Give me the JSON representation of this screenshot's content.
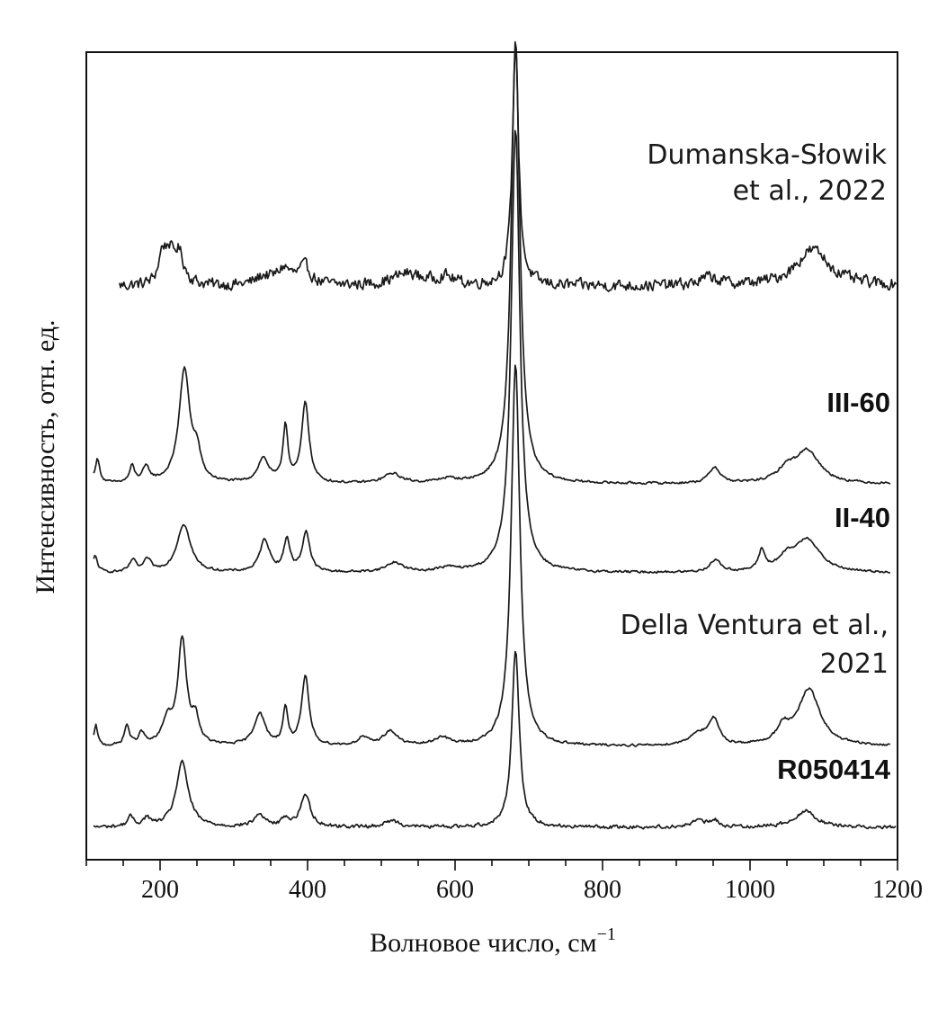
{
  "chart_data": {
    "type": "line",
    "title": "",
    "xlabel": "Волновое число, см",
    "xlabel_sup": "−1",
    "ylabel": "Интенсивность, отн. ед.",
    "xlim": [
      100,
      1200
    ],
    "xticks": [
      200,
      400,
      600,
      800,
      1000,
      1200
    ],
    "yticks": [],
    "grid": false,
    "series": [
      {
        "name": "Dumanska-Słowik et al., 2022",
        "label_lines": [
          "Dumanska-Słowik",
          "et al., 2022"
        ],
        "label_style": "plain",
        "baseline": 0.71,
        "noise": 0.01,
        "x_range": [
          145,
          1198
        ],
        "peaks": [
          {
            "x": 203,
            "h": 0.035,
            "w": 6
          },
          {
            "x": 212,
            "h": 0.03,
            "w": 6
          },
          {
            "x": 225,
            "h": 0.04,
            "w": 9
          },
          {
            "x": 340,
            "h": 0.01,
            "w": 12
          },
          {
            "x": 368,
            "h": 0.02,
            "w": 12
          },
          {
            "x": 396,
            "h": 0.022,
            "w": 10
          },
          {
            "x": 535,
            "h": 0.015,
            "w": 25
          },
          {
            "x": 586,
            "h": 0.01,
            "w": 15
          },
          {
            "x": 682,
            "h": 0.3,
            "w": 5
          },
          {
            "x": 945,
            "h": 0.01,
            "w": 15
          },
          {
            "x": 1085,
            "h": 0.045,
            "w": 28
          }
        ]
      },
      {
        "name": "III-60",
        "label_lines": [
          "III-60"
        ],
        "label_style": "bold",
        "baseline": 0.465,
        "noise": 0.002,
        "x_range": [
          110,
          1190
        ],
        "peaks": [
          {
            "x": 115,
            "h": 0.03,
            "w": 4
          },
          {
            "x": 162,
            "h": 0.02,
            "w": 4
          },
          {
            "x": 181,
            "h": 0.018,
            "w": 6
          },
          {
            "x": 233,
            "h": 0.14,
            "w": 9
          },
          {
            "x": 250,
            "h": 0.03,
            "w": 6
          },
          {
            "x": 340,
            "h": 0.03,
            "w": 9
          },
          {
            "x": 370,
            "h": 0.07,
            "w": 4
          },
          {
            "x": 397,
            "h": 0.1,
            "w": 6
          },
          {
            "x": 515,
            "h": 0.012,
            "w": 14
          },
          {
            "x": 590,
            "h": 0.005,
            "w": 15
          },
          {
            "x": 682,
            "h": 0.55,
            "w": 7
          },
          {
            "x": 952,
            "h": 0.02,
            "w": 9
          },
          {
            "x": 1050,
            "h": 0.015,
            "w": 15
          },
          {
            "x": 1078,
            "h": 0.04,
            "w": 20
          }
        ]
      },
      {
        "name": "II-40",
        "label_lines": [
          "II-40"
        ],
        "label_style": "bold",
        "baseline": 0.355,
        "noise": 0.002,
        "x_range": [
          110,
          1190
        ],
        "peaks": [
          {
            "x": 112,
            "h": 0.02,
            "w": 4
          },
          {
            "x": 163,
            "h": 0.015,
            "w": 5
          },
          {
            "x": 183,
            "h": 0.015,
            "w": 6
          },
          {
            "x": 232,
            "h": 0.06,
            "w": 11
          },
          {
            "x": 342,
            "h": 0.04,
            "w": 8
          },
          {
            "x": 372,
            "h": 0.04,
            "w": 5
          },
          {
            "x": 398,
            "h": 0.05,
            "w": 6
          },
          {
            "x": 518,
            "h": 0.012,
            "w": 14
          },
          {
            "x": 590,
            "h": 0.005,
            "w": 15
          },
          {
            "x": 682,
            "h": 0.55,
            "w": 7
          },
          {
            "x": 953,
            "h": 0.015,
            "w": 9
          },
          {
            "x": 1016,
            "h": 0.025,
            "w": 5
          },
          {
            "x": 1050,
            "h": 0.015,
            "w": 15
          },
          {
            "x": 1078,
            "h": 0.04,
            "w": 20
          }
        ]
      },
      {
        "name": "Della Ventura et al., 2021",
        "label_lines": [
          "Della Ventura et al.,",
          "2021"
        ],
        "label_style": "plain",
        "baseline": 0.14,
        "noise": 0.002,
        "x_range": [
          110,
          1190
        ],
        "peaks": [
          {
            "x": 113,
            "h": 0.025,
            "w": 3
          },
          {
            "x": 155,
            "h": 0.025,
            "w": 4
          },
          {
            "x": 175,
            "h": 0.015,
            "w": 5
          },
          {
            "x": 230,
            "h": 0.13,
            "w": 7
          },
          {
            "x": 210,
            "h": 0.03,
            "w": 8
          },
          {
            "x": 248,
            "h": 0.03,
            "w": 6
          },
          {
            "x": 335,
            "h": 0.04,
            "w": 9
          },
          {
            "x": 370,
            "h": 0.045,
            "w": 4
          },
          {
            "x": 397,
            "h": 0.085,
            "w": 6
          },
          {
            "x": 475,
            "h": 0.01,
            "w": 8
          },
          {
            "x": 512,
            "h": 0.018,
            "w": 12
          },
          {
            "x": 582,
            "h": 0.01,
            "w": 12
          },
          {
            "x": 682,
            "h": 0.475,
            "w": 7
          },
          {
            "x": 930,
            "h": 0.015,
            "w": 15
          },
          {
            "x": 951,
            "h": 0.03,
            "w": 8
          },
          {
            "x": 1045,
            "h": 0.02,
            "w": 10
          },
          {
            "x": 1080,
            "h": 0.07,
            "w": 18
          }
        ]
      },
      {
        "name": "R050414",
        "label_lines": [
          "R050414"
        ],
        "label_style": "bold",
        "baseline": 0.04,
        "noise": 0.003,
        "x_range": [
          110,
          1198
        ],
        "peaks": [
          {
            "x": 160,
            "h": 0.012,
            "w": 5
          },
          {
            "x": 182,
            "h": 0.01,
            "w": 6
          },
          {
            "x": 230,
            "h": 0.08,
            "w": 10
          },
          {
            "x": 335,
            "h": 0.015,
            "w": 9
          },
          {
            "x": 370,
            "h": 0.01,
            "w": 6
          },
          {
            "x": 397,
            "h": 0.04,
            "w": 8
          },
          {
            "x": 515,
            "h": 0.008,
            "w": 12
          },
          {
            "x": 682,
            "h": 0.22,
            "w": 6
          },
          {
            "x": 930,
            "h": 0.008,
            "w": 12
          },
          {
            "x": 952,
            "h": 0.008,
            "w": 6
          },
          {
            "x": 1075,
            "h": 0.02,
            "w": 18
          }
        ]
      }
    ]
  }
}
